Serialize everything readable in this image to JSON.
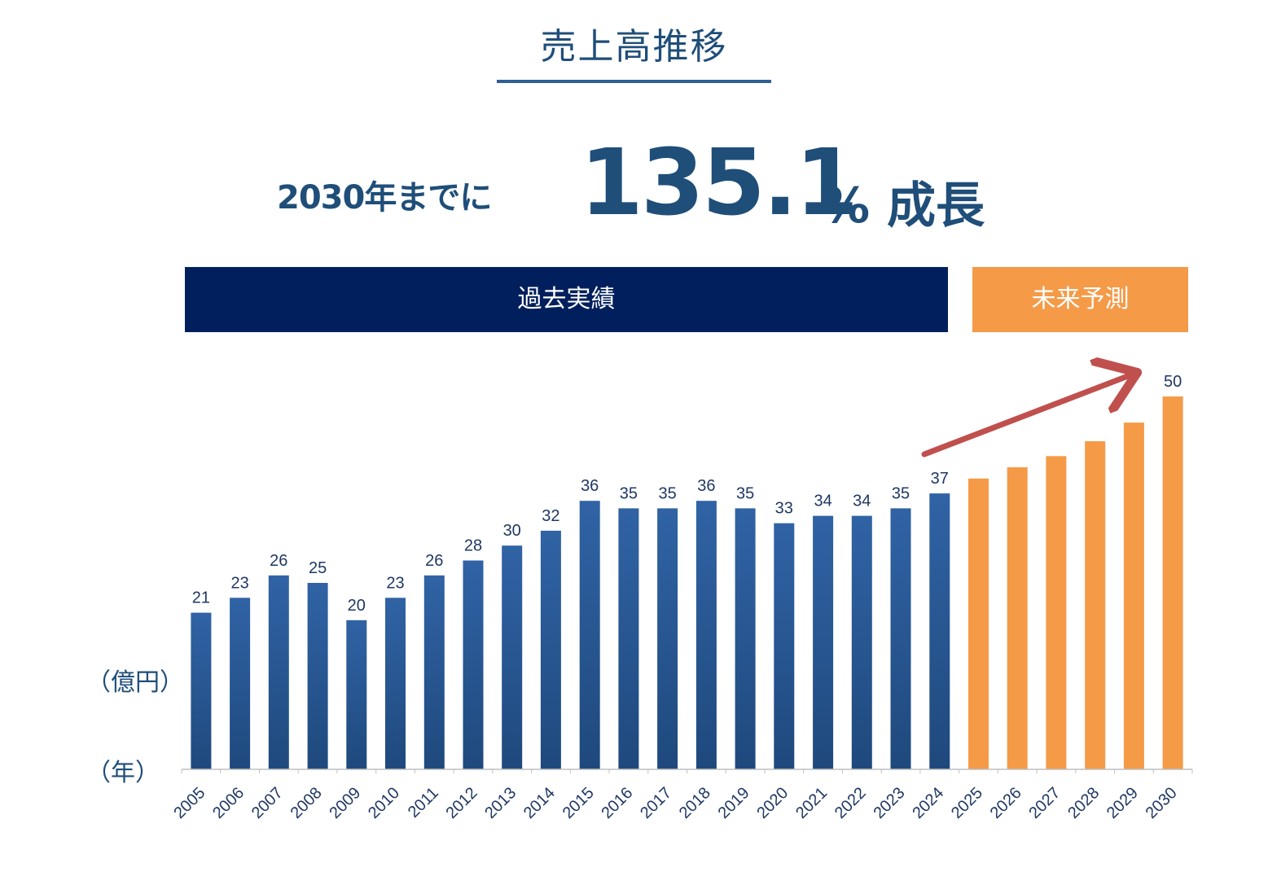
{
  "header": {
    "title": "売上高推移",
    "growth_prefix": "2030年までに",
    "growth_value": "135.1",
    "growth_unit": "% 成長"
  },
  "bands": {
    "past_label": "過去実績",
    "future_label": "未来予測"
  },
  "colors": {
    "title": "#1f4e79",
    "past_band": "#001f5c",
    "future_band": "#f59a47",
    "past_bar_top": "#3063a5",
    "past_bar_bottom": "#1f497d",
    "future_bar": "#f59a47",
    "arrow": "#c0504d"
  },
  "chart_data": {
    "type": "bar",
    "xlabel": "（年）",
    "ylabel": "（億円）",
    "categories": [
      "2005",
      "2006",
      "2007",
      "2008",
      "2009",
      "2010",
      "2011",
      "2012",
      "2013",
      "2014",
      "2015",
      "2016",
      "2017",
      "2018",
      "2019",
      "2020",
      "2021",
      "2022",
      "2023",
      "2024",
      "2025",
      "2026",
      "2027",
      "2028",
      "2029",
      "2030"
    ],
    "values": [
      21,
      23,
      26,
      25,
      20,
      23,
      26,
      28,
      30,
      32,
      36,
      35,
      35,
      36,
      35,
      33,
      34,
      34,
      35,
      37,
      39,
      40.5,
      42,
      44,
      46.5,
      50
    ],
    "labels": [
      "21",
      "23",
      "26",
      "25",
      "20",
      "23",
      "26",
      "28",
      "30",
      "32",
      "36",
      "35",
      "35",
      "36",
      "35",
      "33",
      "34",
      "34",
      "35",
      "37",
      "",
      "",
      "",
      "",
      "",
      "50"
    ],
    "series": [
      {
        "name": "過去実績",
        "from": "2005",
        "to": "2024"
      },
      {
        "name": "未来予測",
        "from": "2025",
        "to": "2030"
      }
    ],
    "ylim": [
      0,
      52
    ],
    "grid": false,
    "annotations": [
      {
        "type": "arrow",
        "from": "2024",
        "to": "2030",
        "direction": "upward trend"
      }
    ]
  }
}
